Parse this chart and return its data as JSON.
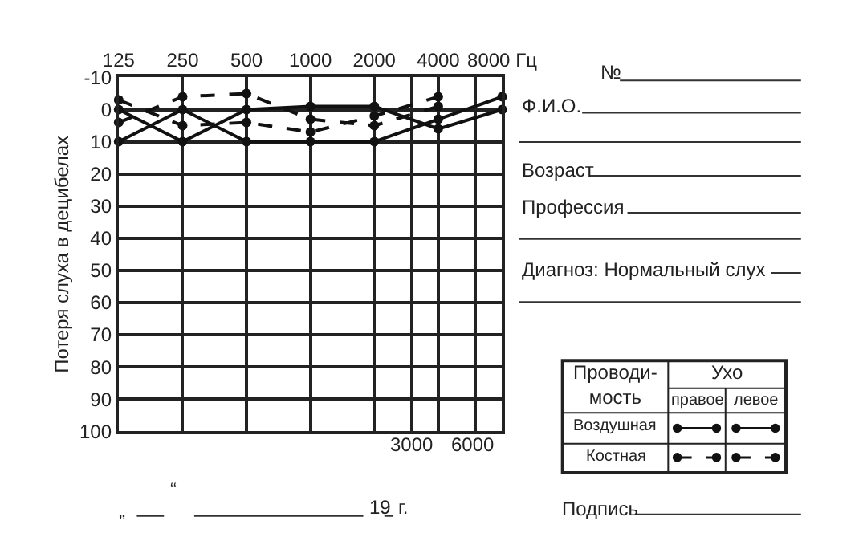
{
  "chart_data": {
    "type": "line",
    "ylabel": "Потеря слуха в децибелах",
    "x": [
      125,
      250,
      500,
      1000,
      2000,
      4000,
      8000
    ],
    "xlim": [
      125,
      8000
    ],
    "xticks": [
      125,
      250,
      500,
      1000,
      2000,
      {
        "value": 3000,
        "label": null
      },
      4000,
      {
        "value": 6000,
        "label": null
      },
      {
        "value": 8000,
        "label": "8000 Гц"
      }
    ],
    "log": "x",
    "ylim": [
      100,
      -10
    ],
    "yticks": [
      -10,
      0,
      10,
      20,
      30,
      40,
      50,
      60,
      70,
      80,
      90,
      100
    ],
    "grid": true,
    "marker": "circle",
    "series": [
      {
        "color": "#111111",
        "line_style": "solid",
        "values": [
          0,
          10,
          0,
          -1,
          -1,
          6,
          0
        ]
      },
      {
        "color": "#111111",
        "line_style": "solid",
        "values": [
          10,
          0,
          10,
          10,
          10,
          3,
          -4
        ]
      },
      {
        "color": "#111111",
        "line_style": "dashed",
        "values": [
          -3,
          5,
          4,
          7,
          2,
          -4,
          null
        ]
      },
      {
        "color": "#111111",
        "line_style": "dashed",
        "values": [
          4,
          -4,
          -5,
          3,
          5,
          -1,
          null
        ]
      }
    ],
    "annotations": [
      "3000",
      "6000",
      "№",
      "Ф.И.О.",
      "Возраст",
      "Профессия",
      "Диагноз: Нормальный слух",
      "Подпись",
      "„",
      "“",
      "19",
      "г.",
      "Проводи-\nмость",
      "Ухо",
      "правое",
      "левое",
      "Воздушная",
      "Костная"
    ]
  }
}
